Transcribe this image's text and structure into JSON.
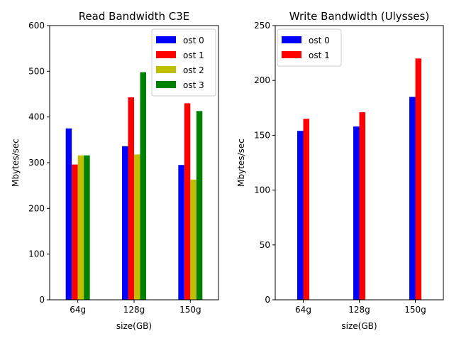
{
  "chart_data": [
    {
      "type": "bar",
      "title": "Read Bandwidth C3E",
      "xlabel": "size(GB)",
      "ylabel": "Mbytes/sec",
      "categories": [
        "64g",
        "128g",
        "150g"
      ],
      "ylim": [
        0,
        600
      ],
      "yticks": [
        0,
        100,
        200,
        300,
        400,
        500,
        600
      ],
      "grid": false,
      "legend": "top-right",
      "series": [
        {
          "name": "ost 0",
          "color": "#0000ff",
          "values": [
            375,
            336,
            295
          ]
        },
        {
          "name": "ost 1",
          "color": "#ff0000",
          "values": [
            296,
            443,
            430
          ]
        },
        {
          "name": "ost 2",
          "color": "#bfbf00",
          "values": [
            316,
            318,
            263
          ]
        },
        {
          "name": "ost 3",
          "color": "#008000",
          "values": [
            316,
            498,
            413
          ]
        }
      ]
    },
    {
      "type": "bar",
      "title": "Write Bandwidth (Ulysses)",
      "xlabel": "size(GB)",
      "ylabel": "Mbytes/sec",
      "categories": [
        "64g",
        "128g",
        "150g"
      ],
      "ylim": [
        0,
        250
      ],
      "yticks": [
        0,
        50,
        100,
        150,
        200,
        250
      ],
      "grid": false,
      "legend": "top-left",
      "series": [
        {
          "name": "ost 0",
          "color": "#0000ff",
          "values": [
            154,
            158,
            185
          ]
        },
        {
          "name": "ost 1",
          "color": "#ff0000",
          "values": [
            165,
            171,
            220
          ]
        }
      ]
    }
  ]
}
